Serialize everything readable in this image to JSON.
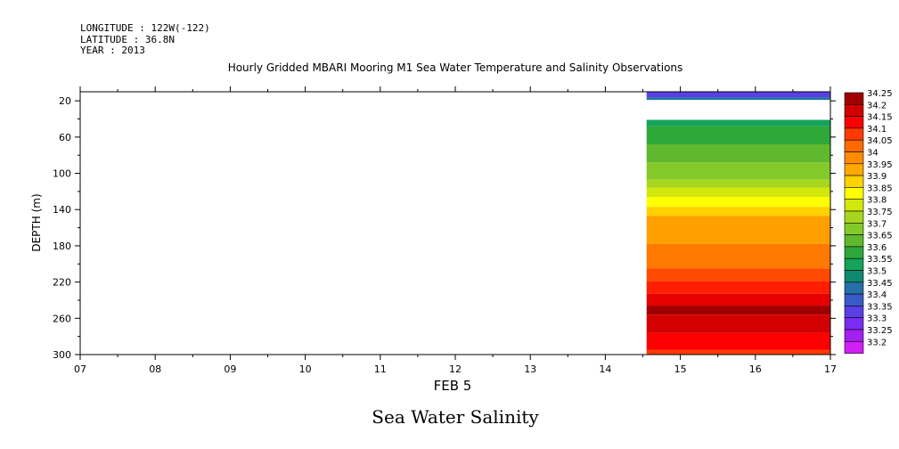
{
  "header": {
    "longitude": "LONGITUDE : 122W(-122)",
    "latitude": "LATITUDE : 36.8N",
    "year": "YEAR : 2013"
  },
  "chart_data": {
    "type": "heatmap",
    "title": "Hourly Gridded MBARI Mooring M1 Sea Water Temperature and Salinity Observations",
    "xlabel": "FEB  5",
    "ylabel": "DEPTH (m)",
    "bottom_title": "Sea Water Salinity",
    "x_ticks": [
      "07",
      "08",
      "09",
      "10",
      "11",
      "12",
      "13",
      "14",
      "15",
      "16",
      "17"
    ],
    "x_range": [
      7,
      17
    ],
    "y_ticks": [
      20,
      60,
      100,
      140,
      180,
      220,
      260,
      300
    ],
    "y_range": [
      10,
      300
    ],
    "y_inverted": true,
    "data_x_start": 14.55,
    "data_x_end": 17,
    "bands": [
      {
        "top": 10,
        "bottom": 16,
        "value": 33.375,
        "color": "#5b3fe6"
      },
      {
        "top": 16,
        "bottom": 19,
        "value": 33.475,
        "color": "#2570a8"
      },
      {
        "top": 41,
        "bottom": 48,
        "value": 33.575,
        "color": "#15a35a"
      },
      {
        "top": 48,
        "bottom": 68,
        "value": 33.625,
        "color": "#2ea838"
      },
      {
        "top": 68,
        "bottom": 88,
        "value": 33.675,
        "color": "#5fb82e"
      },
      {
        "top": 88,
        "bottom": 107,
        "value": 33.725,
        "color": "#84c92a"
      },
      {
        "top": 107,
        "bottom": 116,
        "value": 33.775,
        "color": "#a8d61e"
      },
      {
        "top": 116,
        "bottom": 126,
        "value": 33.825,
        "color": "#d2e80c"
      },
      {
        "top": 126,
        "bottom": 137,
        "value": 33.875,
        "color": "#ffff00"
      },
      {
        "top": 137,
        "bottom": 147,
        "value": 33.925,
        "color": "#ffd200"
      },
      {
        "top": 147,
        "bottom": 178,
        "value": 33.975,
        "color": "#ffa000"
      },
      {
        "top": 178,
        "bottom": 205,
        "value": 34.025,
        "color": "#ff7800"
      },
      {
        "top": 205,
        "bottom": 219,
        "value": 34.075,
        "color": "#ff4a00"
      },
      {
        "top": 219,
        "bottom": 233,
        "value": 34.125,
        "color": "#ff1e00"
      },
      {
        "top": 233,
        "bottom": 246,
        "value": 34.175,
        "color": "#e60000"
      },
      {
        "top": 246,
        "bottom": 256,
        "value": 34.225,
        "color": "#a00000"
      },
      {
        "top": 256,
        "bottom": 276,
        "value": 34.175,
        "color": "#d20000"
      },
      {
        "top": 276,
        "bottom": 295,
        "value": 34.125,
        "color": "#ff0000"
      },
      {
        "top": 295,
        "bottom": 300,
        "value": 34.075,
        "color": "#ff3a00"
      }
    ],
    "colorbar": {
      "labels": [
        "34.25",
        "34.2",
        "34.15",
        "34.1",
        "34.05",
        "34",
        "33.95",
        "33.9",
        "33.85",
        "33.8",
        "33.75",
        "33.7",
        "33.65",
        "33.6",
        "33.55",
        "33.5",
        "33.45",
        "33.4",
        "33.35",
        "33.3",
        "33.25",
        "33.2"
      ],
      "colors": [
        "#a00000",
        "#d20000",
        "#ff0000",
        "#ff3a00",
        "#ff6a00",
        "#ff8c00",
        "#ffa800",
        "#ffd200",
        "#ffff00",
        "#d2e80c",
        "#a8d61e",
        "#84c92a",
        "#5fb82e",
        "#2ea838",
        "#15a35a",
        "#0f8a6e",
        "#2570a8",
        "#3a5ac8",
        "#5b3fe6",
        "#7a2cf0",
        "#a31ff2",
        "#d21ff5"
      ]
    }
  }
}
